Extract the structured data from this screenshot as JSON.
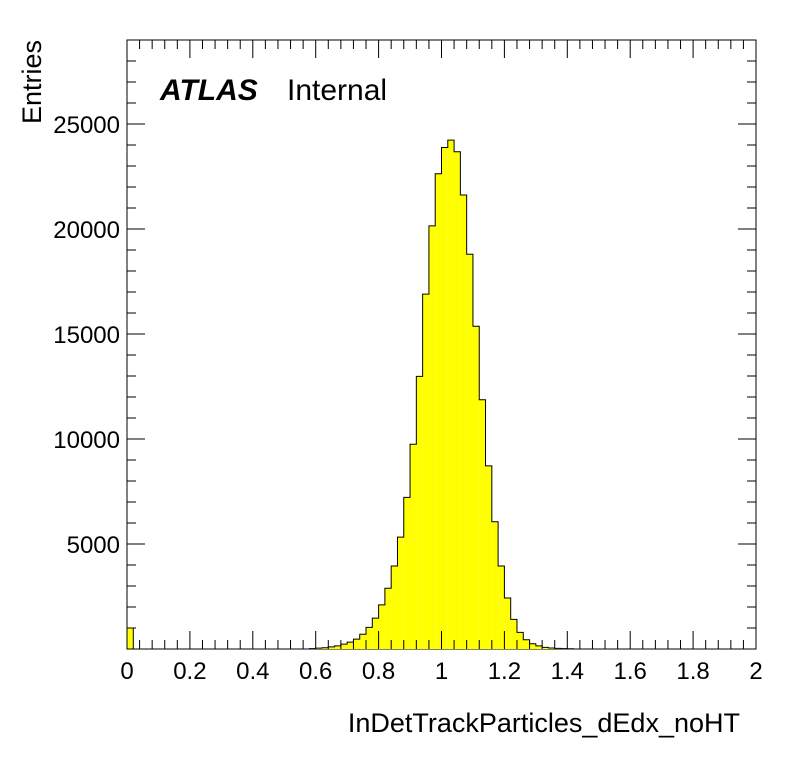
{
  "chart_data": {
    "type": "bar",
    "histogram": true,
    "brand": {
      "experiment": "ATLAS",
      "status": "Internal"
    },
    "xlabel": "InDetTrackParticles_dEdx_noHT",
    "ylabel": "Entries",
    "xlim": [
      0,
      2
    ],
    "ylim": [
      0,
      29000
    ],
    "x_ticks": [
      "0",
      "0.2",
      "0.4",
      "0.6",
      "0.8",
      "1",
      "1.2",
      "1.4",
      "1.6",
      "1.8",
      "2"
    ],
    "y_ticks": [
      "5000",
      "10000",
      "15000",
      "20000",
      "25000"
    ],
    "fill_color": "#ffff00",
    "line_color": "#000000",
    "bin_width": 0.02,
    "series": [
      {
        "values": [
          1000,
          0,
          0,
          0,
          0,
          0,
          0,
          0,
          0,
          0,
          0,
          0,
          0,
          0,
          0,
          0,
          0,
          0,
          0,
          0,
          0,
          0,
          0,
          0,
          0,
          0,
          0,
          0,
          0,
          20,
          40,
          60,
          100,
          150,
          230,
          330,
          470,
          700,
          1030,
          1470,
          2100,
          2890,
          3950,
          5330,
          7220,
          9750,
          12980,
          16900,
          20150,
          22630,
          23880,
          24230,
          23680,
          21620,
          18800,
          15370,
          11870,
          8720,
          6060,
          3950,
          2430,
          1410,
          790,
          440,
          250,
          150,
          80,
          50,
          30,
          20,
          10,
          0,
          0,
          0,
          0,
          0,
          0,
          0,
          0,
          0,
          0,
          0,
          0,
          0,
          0,
          0,
          0,
          0,
          0,
          0,
          0,
          0,
          0,
          0,
          0,
          0,
          0,
          0,
          0,
          0
        ]
      }
    ]
  }
}
